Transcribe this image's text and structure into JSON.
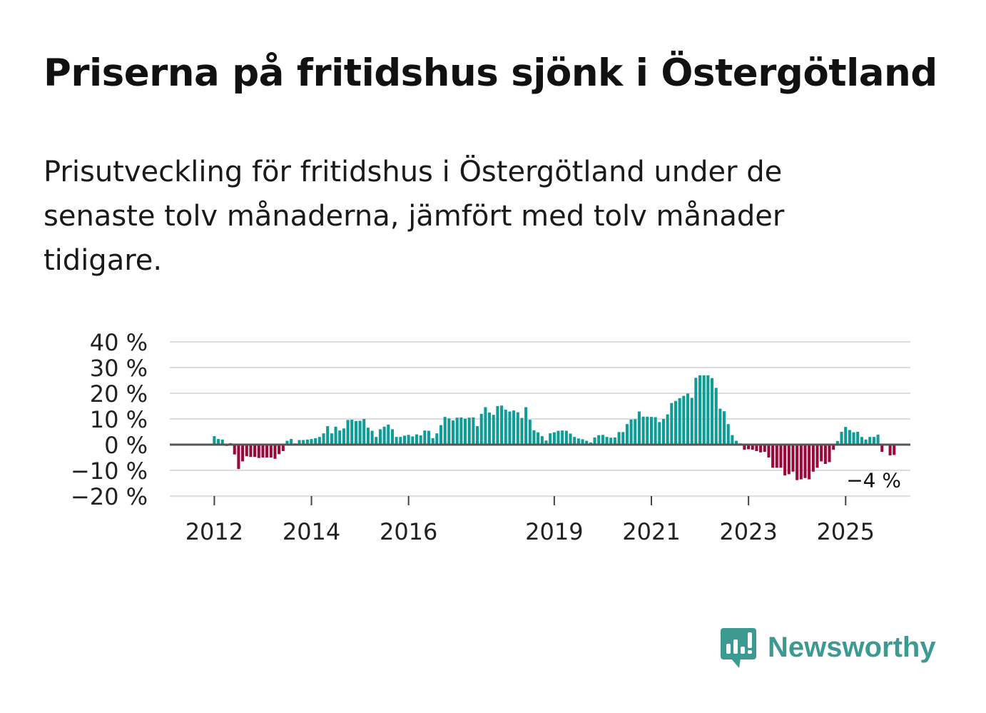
{
  "header": {
    "title": "Priserna på fritidshus sjönk i Östergötland",
    "subtitle": "Prisutveckling för fritidshus i Östergötland under de senaste tolv månaderna, jämfört med tolv månader tidigare."
  },
  "colors": {
    "positive": "#0f9c96",
    "negative": "#990a3b",
    "zero_line": "#555555",
    "grid": "#dddddd",
    "text": "#222222",
    "brand": "#3d9a92"
  },
  "brand": {
    "name": "Newsworthy",
    "icon": "newsworthy-chart-icon"
  },
  "chart_data": {
    "type": "bar",
    "title": "",
    "xlabel": "",
    "ylabel": "",
    "ylim": [
      -20,
      40
    ],
    "y_ticks": [
      40,
      30,
      20,
      10,
      0,
      -10,
      -20
    ],
    "y_tick_labels": [
      "40 %",
      "30 %",
      "20 %",
      "10 %",
      "0 %",
      "−10 %",
      "−20 %"
    ],
    "x_ticks": [
      2012,
      2014,
      2016,
      2019,
      2021,
      2023,
      2025
    ],
    "x_start": 2011.083,
    "x_end": 2026.333,
    "x_step": 0.08333,
    "last_label": "−4 %",
    "values": [
      null,
      null,
      null,
      null,
      null,
      null,
      null,
      null,
      null,
      null,
      null,
      3.3,
      2.2,
      2.0,
      -0.5,
      0.6,
      -3.8,
      -9.5,
      -6.5,
      -4.5,
      -4.8,
      -4.8,
      -5.2,
      -5.0,
      -5.0,
      -5.0,
      -5.5,
      -3.7,
      -2.5,
      1.5,
      2.2,
      0.5,
      1.8,
      1.8,
      2.0,
      2.2,
      2.5,
      3.0,
      4.4,
      7.2,
      4.4,
      7.0,
      5.5,
      6.3,
      9.6,
      9.7,
      9.2,
      9.3,
      10.0,
      6.6,
      5.4,
      3.0,
      6.0,
      7.0,
      7.8,
      6.0,
      3.0,
      3.0,
      3.5,
      3.8,
      3.2,
      4.0,
      3.6,
      5.5,
      5.4,
      2.5,
      4.4,
      7.6,
      10.8,
      10.2,
      9.4,
      10.5,
      10.6,
      10.1,
      10.5,
      10.6,
      7.2,
      12.0,
      14.6,
      12.5,
      11.6,
      15.0,
      15.2,
      13.6,
      12.9,
      13.3,
      12.6,
      10.4,
      14.6,
      9.7,
      5.6,
      4.8,
      3.3,
      1.6,
      4.4,
      4.8,
      5.4,
      5.5,
      5.4,
      4.3,
      3.0,
      2.4,
      2.1,
      1.5,
      0.8,
      2.8,
      3.7,
      3.8,
      3.0,
      2.7,
      2.8,
      4.9,
      4.9,
      8.0,
      9.8,
      9.9,
      12.9,
      10.9,
      10.9,
      10.8,
      10.7,
      8.8,
      10.0,
      11.8,
      16.2,
      17.0,
      18.1,
      19.0,
      19.9,
      18.2,
      26.0,
      27.0,
      27.0,
      27.0,
      25.9,
      22.1,
      14.0,
      13.0,
      8.0,
      3.7,
      1.5,
      0.5,
      -2.0,
      -1.8,
      -2.0,
      -2.5,
      -3.0,
      -2.8,
      -5.0,
      -9.0,
      -9.0,
      -9.0,
      -12.0,
      -11.5,
      -10.5,
      -13.8,
      -13.5,
      -13.0,
      -13.5,
      -10.5,
      -9.0,
      -6.5,
      -7.5,
      -6.8,
      -2.0,
      1.4,
      5.0,
      6.9,
      5.7,
      4.8,
      5.0,
      3.0,
      2.0,
      3.0,
      3.0,
      3.9,
      -2.8,
      null,
      -4.2,
      -4.0
    ]
  }
}
